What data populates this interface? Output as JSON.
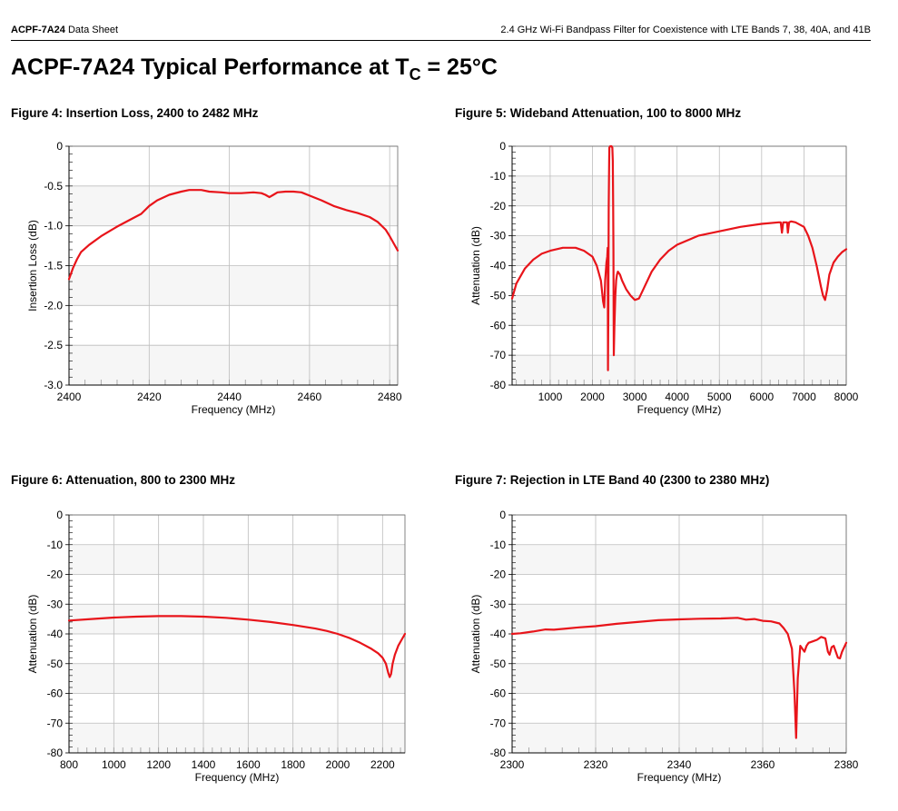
{
  "header": {
    "left_bold": "ACPF-7A24",
    "left_rest": " Data Sheet",
    "right": "2.4 GHz Wi-Fi Bandpass Filter for Coexistence with LTE Bands 7, 38, 40A, and 41B"
  },
  "page_title": {
    "main": "ACPF-7A24 Typical Performance at T",
    "sub": "C",
    "tail": " = 25°C"
  },
  "colors": {
    "trace": "#e8141a",
    "band": "#f6f6f6",
    "grid": "#bdbdbd",
    "axis": "#000000"
  },
  "figures": [
    {
      "caption": "Figure 4:  Insertion Loss, 2400 to 2482 MHz"
    },
    {
      "caption": "Figure 5:  Wideband Attenuation, 100 to 8000 MHz"
    },
    {
      "caption": "Figure 6:  Attenuation, 800 to 2300 MHz"
    },
    {
      "caption": "Figure 7:  Rejection in LTE Band 40 (2300 to 2380 MHz)"
    }
  ],
  "chart_data": [
    {
      "type": "line",
      "title": "Figure 4:  Insertion Loss, 2400 to 2482 MHz",
      "xlabel": "Frequency (MHz)",
      "ylabel": "Insertion Loss (dB)",
      "xlim": [
        2400,
        2482
      ],
      "ylim": [
        -3.0,
        0
      ],
      "xticks": [
        2400,
        2420,
        2440,
        2460,
        2480
      ],
      "xtick_labels": [
        "2400",
        "2420",
        "2440",
        "2460",
        "2480"
      ],
      "yticks": [
        0,
        -0.5,
        -1.0,
        -1.5,
        -2.0,
        -2.5,
        -3.0
      ],
      "ytick_labels": [
        "0",
        "-0.5",
        "-1.0",
        "-1.5",
        "-2.0",
        "-2.5",
        "-3.0"
      ],
      "grid": true,
      "series": [
        {
          "x": [
            2400,
            2401,
            2402,
            2403,
            2405,
            2408,
            2410,
            2412,
            2415,
            2418,
            2420,
            2422,
            2425,
            2428,
            2430,
            2433,
            2435,
            2438,
            2440,
            2443,
            2446,
            2448,
            2449,
            2450,
            2451,
            2452,
            2454,
            2456,
            2458,
            2460,
            2463,
            2466,
            2469,
            2472,
            2475,
            2477,
            2479,
            2480,
            2481,
            2482
          ],
          "y": [
            -1.67,
            -1.53,
            -1.42,
            -1.33,
            -1.24,
            -1.13,
            -1.07,
            -1.01,
            -0.93,
            -0.85,
            -0.75,
            -0.68,
            -0.61,
            -0.57,
            -0.55,
            -0.55,
            -0.57,
            -0.58,
            -0.59,
            -0.59,
            -0.58,
            -0.59,
            -0.61,
            -0.64,
            -0.61,
            -0.58,
            -0.57,
            -0.57,
            -0.58,
            -0.62,
            -0.68,
            -0.75,
            -0.8,
            -0.84,
            -0.89,
            -0.95,
            -1.05,
            -1.13,
            -1.22,
            -1.31
          ]
        }
      ]
    },
    {
      "type": "line",
      "title": "Figure 5:  Wideband Attenuation, 100 to 8000 MHz",
      "xlabel": "Frequency (MHz)",
      "ylabel": "Attenuation (dB)",
      "xlim": [
        100,
        8000
      ],
      "ylim": [
        -80,
        0
      ],
      "xticks": [
        1000,
        2000,
        3000,
        4000,
        5000,
        6000,
        7000,
        8000
      ],
      "xtick_labels": [
        "1000",
        "2000",
        "3000",
        "4000",
        "5000",
        "6000",
        "7000",
        "8000"
      ],
      "yticks": [
        0,
        -10,
        -20,
        -30,
        -40,
        -50,
        -60,
        -70,
        -80
      ],
      "ytick_labels": [
        "0",
        "-10",
        "-20",
        "-30",
        "-40",
        "-50",
        "-60",
        "-70",
        "-80"
      ],
      "grid": true,
      "series": [
        {
          "x": [
            100,
            200,
            400,
            600,
            800,
            1000,
            1300,
            1600,
            1800,
            2000,
            2100,
            2200,
            2250,
            2280,
            2300,
            2330,
            2350,
            2360,
            2368,
            2375,
            2385,
            2395,
            2400,
            2420,
            2450,
            2470,
            2480,
            2490,
            2495,
            2500,
            2505,
            2520,
            2540,
            2560,
            2580,
            2600,
            2650,
            2700,
            2800,
            2900,
            3000,
            3100,
            3200,
            3400,
            3600,
            3800,
            4000,
            4500,
            5000,
            5500,
            6000,
            6400,
            6450,
            6480,
            6510,
            6550,
            6600,
            6620,
            6650,
            6700,
            6800,
            7000,
            7100,
            7200,
            7300,
            7400,
            7450,
            7500,
            7550,
            7600,
            7700,
            7800,
            7900,
            8000
          ],
          "y": [
            -51,
            -46,
            -41,
            -38,
            -36,
            -35,
            -34,
            -34,
            -35,
            -37,
            -40,
            -45,
            -52,
            -54,
            -45,
            -39,
            -37,
            -34,
            -75,
            -55,
            -20,
            -5,
            -0.5,
            0,
            0,
            -0.5,
            -5,
            -20,
            -35,
            -55,
            -70,
            -60,
            -50,
            -45,
            -43,
            -42,
            -43,
            -45,
            -48,
            -50,
            -51.5,
            -51,
            -48,
            -42,
            -38,
            -35,
            -33,
            -30,
            -28.5,
            -27,
            -26,
            -25.5,
            -25.5,
            -29,
            -25.5,
            -25.5,
            -25.5,
            -29,
            -25.5,
            -25.2,
            -25.5,
            -27,
            -30,
            -34,
            -40,
            -47,
            -50,
            -51.5,
            -48,
            -43,
            -39,
            -37,
            -35.5,
            -34.5
          ]
        }
      ]
    },
    {
      "type": "line",
      "title": "Figure 6:  Attenuation, 800 to 2300 MHz",
      "xlabel": "Frequency (MHz)",
      "ylabel": "Attenuation (dB)",
      "xlim": [
        800,
        2300
      ],
      "ylim": [
        -80,
        0
      ],
      "xticks": [
        800,
        1000,
        1200,
        1400,
        1600,
        1800,
        2000,
        2200
      ],
      "xtick_labels": [
        "800",
        "1000",
        "1200",
        "1400",
        "1600",
        "1800",
        "2000",
        "2200"
      ],
      "yticks": [
        0,
        -10,
        -20,
        -30,
        -40,
        -50,
        -60,
        -70,
        -80
      ],
      "ytick_labels": [
        "0",
        "-10",
        "-20",
        "-30",
        "-40",
        "-50",
        "-60",
        "-70",
        "-80"
      ],
      "grid": true,
      "series": [
        {
          "x": [
            800,
            900,
            1000,
            1100,
            1200,
            1300,
            1400,
            1500,
            1600,
            1700,
            1800,
            1900,
            1950,
            2000,
            2050,
            2100,
            2150,
            2180,
            2200,
            2215,
            2225,
            2232,
            2238,
            2245,
            2255,
            2270,
            2285,
            2300
          ],
          "y": [
            -35.5,
            -35,
            -34.5,
            -34.2,
            -34,
            -34,
            -34.2,
            -34.6,
            -35.2,
            -36,
            -37,
            -38.2,
            -39,
            -40,
            -41.3,
            -43,
            -45,
            -46.5,
            -48,
            -50,
            -53,
            -54.5,
            -53.5,
            -50,
            -47,
            -44,
            -42,
            -40
          ]
        }
      ]
    },
    {
      "type": "line",
      "title": "Figure 7:  Rejection in LTE Band 40 (2300 to 2380 MHz)",
      "xlabel": "Frequency (MHz)",
      "ylabel": "Attenuation (dB)",
      "xlim": [
        2300,
        2380
      ],
      "ylim": [
        -80,
        0
      ],
      "xticks": [
        2300,
        2320,
        2340,
        2360,
        2380
      ],
      "xtick_labels": [
        "2300",
        "2320",
        "2340",
        "2360",
        "2380"
      ],
      "yticks": [
        0,
        -10,
        -20,
        -30,
        -40,
        -50,
        -60,
        -70,
        -80
      ],
      "ytick_labels": [
        "0",
        "-10",
        "-20",
        "-30",
        "-40",
        "-50",
        "-60",
        "-70",
        "-80"
      ],
      "grid": true,
      "series": [
        {
          "x": [
            2300,
            2302,
            2305,
            2308,
            2310,
            2313,
            2316,
            2320,
            2325,
            2330,
            2335,
            2340,
            2345,
            2350,
            2354,
            2356,
            2358,
            2360,
            2362,
            2364,
            2365,
            2366,
            2367,
            2367.6,
            2368,
            2368.4,
            2369,
            2369.5,
            2370,
            2370.5,
            2371,
            2372,
            2373,
            2374,
            2375,
            2375.6,
            2376,
            2376.5,
            2377,
            2377.5,
            2378,
            2378.5,
            2379,
            2380
          ],
          "y": [
            -40,
            -39.8,
            -39.2,
            -38.5,
            -38.6,
            -38.2,
            -37.8,
            -37.4,
            -36.6,
            -36,
            -35.4,
            -35.1,
            -34.9,
            -34.8,
            -34.6,
            -35.2,
            -35,
            -35.6,
            -35.8,
            -36.5,
            -38,
            -40,
            -45,
            -60,
            -75,
            -55,
            -44,
            -45,
            -46,
            -44,
            -43,
            -42.5,
            -42,
            -41,
            -41.5,
            -46,
            -47,
            -44.5,
            -44,
            -46,
            -48,
            -48.2,
            -46,
            -43
          ]
        }
      ]
    }
  ]
}
